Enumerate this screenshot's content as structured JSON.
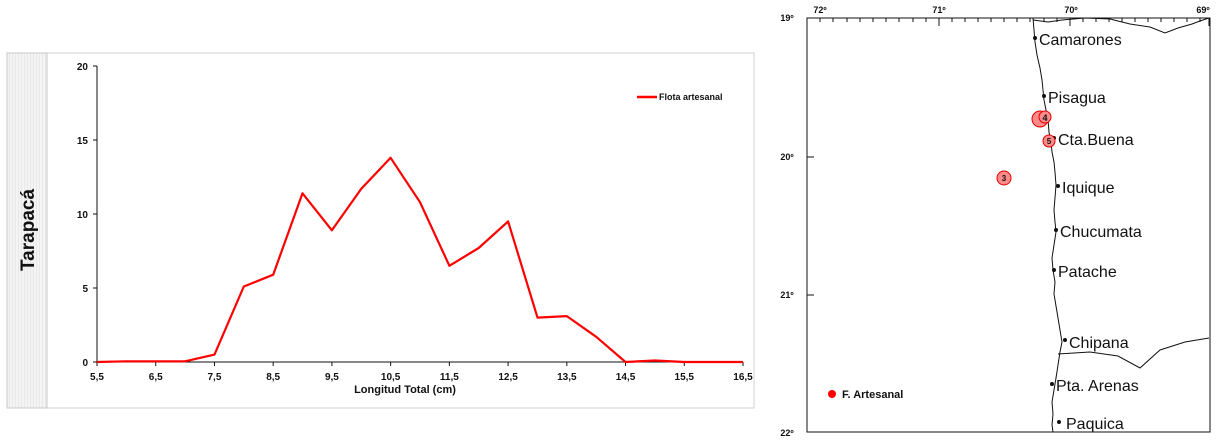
{
  "chart_data": [
    {
      "type": "line",
      "row_label": "Tarapacá",
      "xlabel": "Longitud  Total (cm)",
      "ylabel": "",
      "title": "",
      "xlim": [
        5.5,
        16.5
      ],
      "ylim": [
        0,
        20
      ],
      "x_ticks": [
        "5,5",
        "6,5",
        "7,5",
        "8,5",
        "9,5",
        "10,5",
        "11,5",
        "12,5",
        "13,5",
        "14,5",
        "15,5",
        "16,5"
      ],
      "x_tick_values": [
        5.5,
        6.5,
        7.5,
        8.5,
        9.5,
        10.5,
        11.5,
        12.5,
        13.5,
        14.5,
        15.5,
        16.5
      ],
      "y_ticks": [
        "0",
        "5",
        "10",
        "15",
        "20"
      ],
      "y_tick_values": [
        0,
        5,
        10,
        15,
        20
      ],
      "legend_position": "top-right",
      "series": [
        {
          "name": "Flota artesanal",
          "color": "#ff0000",
          "x": [
            5.5,
            6,
            6.5,
            7,
            7.5,
            8,
            8.5,
            9,
            9.5,
            10,
            10.5,
            11,
            11.5,
            12,
            12.5,
            13,
            13.5,
            14,
            14.5,
            15,
            15.5,
            16,
            16.5
          ],
          "y": [
            0,
            0.05,
            0.05,
            0.05,
            0.5,
            5.1,
            5.9,
            11.4,
            8.9,
            11.7,
            13.8,
            10.8,
            6.5,
            7.7,
            9.5,
            3.0,
            3.1,
            1.7,
            0.0,
            0.1,
            0.0,
            0.0,
            0.0
          ]
        }
      ]
    }
  ],
  "map": {
    "top_ticks": [
      "72º",
      "71º",
      "70º",
      "69º"
    ],
    "left_ticks": [
      "19º",
      "20º",
      "21º",
      "22º"
    ],
    "places": [
      "Camarones",
      "Pisagua",
      "Cta.Buena",
      "Iquique",
      "Chucumata",
      "Patache",
      "Chipana",
      "Pta. Arenas",
      "Paquica"
    ],
    "markers": [
      "4",
      "5",
      "3"
    ],
    "marker_color": "#ff0000",
    "legend_label": "F. Artesanal"
  }
}
